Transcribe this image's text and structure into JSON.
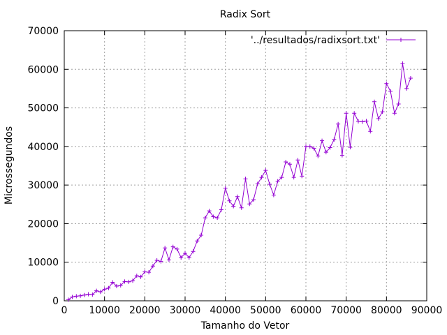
{
  "chart_data": {
    "type": "line",
    "title": "Radix Sort",
    "xlabel": "Tamanho do Vetor",
    "ylabel": "Microssegundos",
    "xlim": [
      0,
      90000
    ],
    "ylim": [
      0,
      70000
    ],
    "xticks": [
      0,
      10000,
      20000,
      30000,
      40000,
      50000,
      60000,
      70000,
      80000,
      90000
    ],
    "yticks": [
      0,
      10000,
      20000,
      30000,
      40000,
      50000,
      60000,
      70000
    ],
    "grid": true,
    "legend_position": "top-right",
    "series": [
      {
        "name": "'../resultados/radixsort.txt'",
        "color": "#9400d3",
        "marker": "plus",
        "x": [
          1000,
          2000,
          3000,
          4000,
          5000,
          6000,
          7000,
          8000,
          9000,
          10000,
          11000,
          12000,
          13000,
          14000,
          15000,
          16000,
          17000,
          18000,
          19000,
          20000,
          21000,
          22000,
          23000,
          24000,
          25000,
          26000,
          27000,
          28000,
          29000,
          30000,
          31000,
          32000,
          33000,
          34000,
          35000,
          36000,
          37000,
          38000,
          39000,
          40000,
          41000,
          42000,
          43000,
          44000,
          45000,
          46000,
          47000,
          48000,
          49000,
          50000,
          51000,
          52000,
          53000,
          54000,
          55000,
          56000,
          57000,
          58000,
          59000,
          60000,
          61000,
          62000,
          63000,
          64000,
          65000,
          66000,
          67000,
          68000,
          69000,
          70000,
          71000,
          72000,
          73000,
          74000,
          75000,
          76000,
          77000,
          78000,
          79000,
          80000,
          81000,
          82000,
          83000,
          84000,
          85000,
          86000
        ],
        "y": [
          300,
          1000,
          1200,
          1300,
          1500,
          1700,
          1600,
          2600,
          2300,
          3000,
          3300,
          4800,
          3800,
          4000,
          5000,
          4900,
          5200,
          6500,
          6200,
          7500,
          7400,
          9000,
          10500,
          10200,
          13700,
          10600,
          14000,
          13400,
          11200,
          12300,
          11200,
          12800,
          15500,
          17000,
          21500,
          23300,
          21800,
          21500,
          23600,
          29200,
          25900,
          24500,
          27000,
          24100,
          31600,
          25100,
          26200,
          30300,
          32000,
          33800,
          30200,
          27400,
          31000,
          32000,
          36000,
          35400,
          32000,
          36500,
          32300,
          40000,
          40000,
          39500,
          37500,
          41500,
          38500,
          39700,
          41800,
          45800,
          37700,
          48600,
          39800,
          48600,
          46500,
          46400,
          46600,
          43900,
          51600,
          47200,
          49000,
          56300,
          54300,
          48600,
          51000,
          61500,
          55000,
          57700
        ]
      }
    ]
  }
}
